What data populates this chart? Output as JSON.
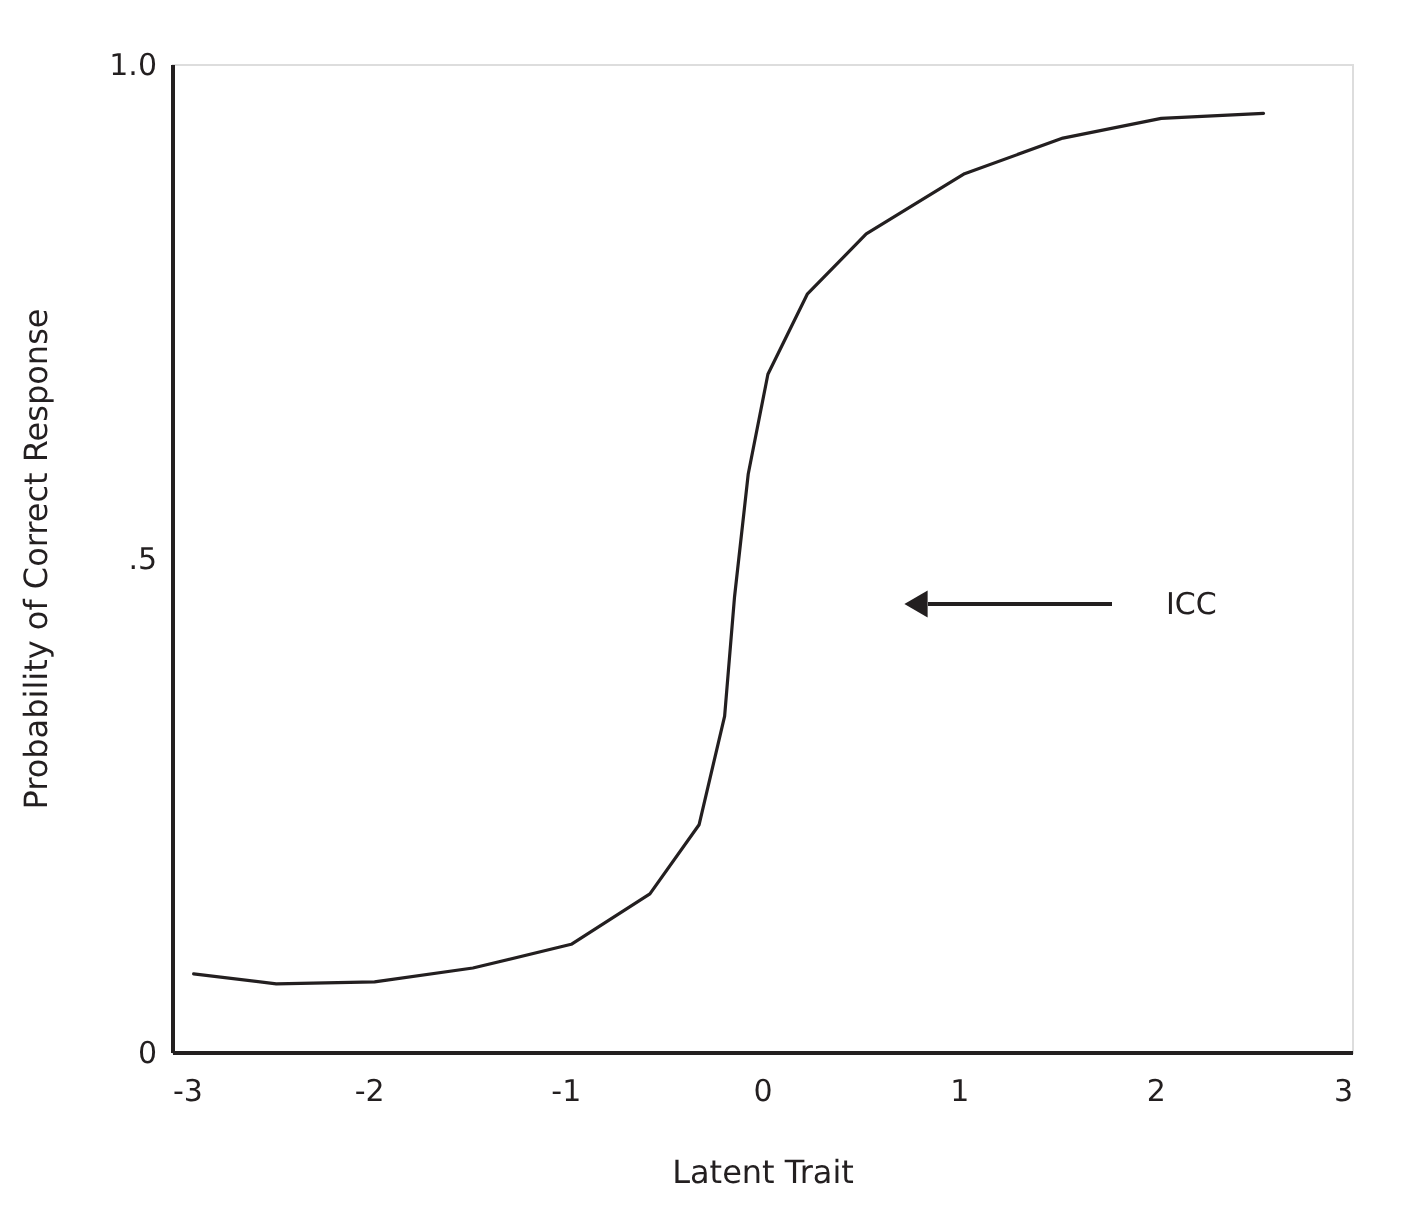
{
  "chart_data": {
    "type": "line",
    "xlabel": "Latent Trait",
    "ylabel": "Probability of Correct Response",
    "x": [
      -2.89,
      -2.47,
      -1.97,
      -1.47,
      -0.97,
      -0.57,
      -0.32,
      -0.19,
      -0.14,
      -0.07,
      0.03,
      0.23,
      0.53,
      1.03,
      1.53,
      2.03,
      2.55
    ],
    "series": [
      {
        "color": "#231f20",
        "values": [
          0.079,
          0.069,
          0.071,
          0.085,
          0.109,
          0.16,
          0.23,
          0.34,
          0.46,
          0.585,
          0.686,
          0.767,
          0.828,
          0.889,
          0.925,
          0.945,
          0.95
        ]
      }
    ],
    "xlim": [
      -3,
      3
    ],
    "ylim": [
      0,
      1
    ],
    "xticks": [
      -3,
      -2,
      -1,
      0,
      1,
      2,
      3
    ],
    "yticks": [
      {
        "value": 0,
        "label": "0"
      },
      {
        "value": 0.5,
        "label": ".5"
      },
      {
        "value": 1,
        "label": "1.0"
      }
    ],
    "annotations": [
      "ICC"
    ],
    "grid": false,
    "marker": "none",
    "line_style": "solid"
  }
}
